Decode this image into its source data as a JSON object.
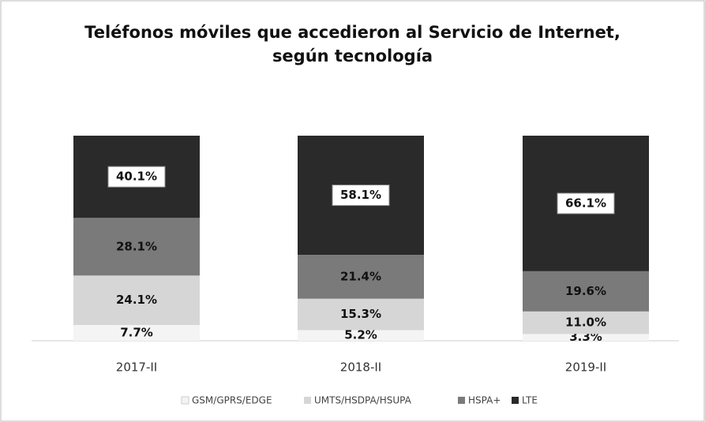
{
  "chart_data": {
    "type": "stacked-bar",
    "title": "Teléfonos móviles que accedieron al Servicio de Internet, según tecnología",
    "categories": [
      "2017-II",
      "2018-II",
      "2019-II"
    ],
    "series": [
      {
        "name": "GSM/GPRS/EDGE",
        "color": "#f4f4f4",
        "values": [
          7.7,
          5.2,
          3.3
        ],
        "value_labels": [
          "7.7%",
          "5.2%",
          "3.3%"
        ]
      },
      {
        "name": "UMTS/HSDPA/HSUPA",
        "color": "#d6d6d6",
        "values": [
          24.1,
          15.3,
          11.0
        ],
        "value_labels": [
          "24.1%",
          "15.3%",
          "11.0%"
        ]
      },
      {
        "name": "HSPA+",
        "color": "#7a7a7a",
        "values": [
          28.1,
          21.4,
          19.6
        ],
        "value_labels": [
          "28.1%",
          "21.4%",
          "19.6%"
        ]
      },
      {
        "name": "LTE",
        "color": "#2a2a2a",
        "values": [
          40.1,
          58.1,
          66.1
        ],
        "value_labels": [
          "40.1%",
          "58.1%",
          "66.1%"
        ]
      }
    ],
    "legend": "bottom"
  }
}
